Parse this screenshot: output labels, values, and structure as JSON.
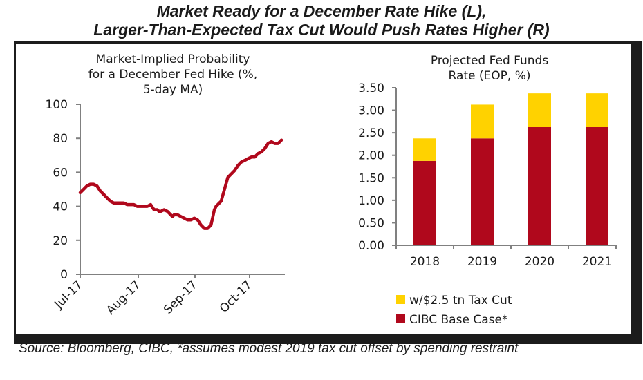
{
  "header": {
    "title_line1": "Market Ready for a December Rate Hike (L),",
    "title_line2": "Larger-Than-Expected Tax Cut Would Push Rates Higher (R)"
  },
  "footer": {
    "source": "Source: Bloomberg, CIBC, *assumes modest 2019 tax cut offset by spending restraint"
  },
  "colors": {
    "line": "#b0081c",
    "base_case": "#b0081c",
    "tax_cut": "#ffd200",
    "axis": "#808080"
  },
  "chart_data": [
    {
      "type": "line",
      "title": [
        "Market-Implied Probability",
        "for a December Fed Hike (%,",
        "5-day MA)"
      ],
      "xlabel": "",
      "ylabel": "",
      "ylim": [
        0,
        100
      ],
      "yticks": [
        0,
        20,
        40,
        60,
        80,
        100
      ],
      "ytick_labels": [
        "0",
        "20",
        "40",
        "60",
        "80",
        "100"
      ],
      "xlim_days": [
        0,
        125
      ],
      "xticks_days": [
        0,
        31,
        62,
        92
      ],
      "xtick_labels": [
        "Jul-17",
        "Aug-17",
        "Sep-17",
        "Oct-17"
      ],
      "grid": false,
      "series": [
        {
          "name": "Market-Implied Probability",
          "x_days": [
            0,
            2,
            4,
            6,
            8,
            10,
            12,
            14,
            16,
            18,
            20,
            22,
            24,
            26,
            28,
            30,
            32,
            34,
            36,
            38,
            40,
            42,
            44,
            46,
            47,
            48,
            50,
            52,
            54,
            55,
            56,
            58,
            60,
            62,
            64,
            66,
            68,
            70,
            72,
            73,
            74,
            76,
            78,
            80,
            81,
            82,
            84,
            86,
            88,
            90,
            92,
            94,
            96,
            98,
            100,
            102,
            104,
            106,
            108,
            110,
            112,
            114,
            116,
            118,
            120
          ],
          "values": [
            48,
            50,
            52,
            53,
            53,
            52,
            49,
            47,
            45,
            43,
            42,
            42,
            42,
            42,
            41,
            41,
            41,
            40,
            40,
            40,
            40,
            41,
            38,
            38,
            37,
            37,
            38,
            37,
            35,
            34,
            35,
            35,
            34,
            33,
            32,
            32,
            33,
            32,
            29,
            28,
            27,
            27,
            29,
            38,
            40,
            41,
            43,
            50,
            57,
            59,
            61,
            64,
            66,
            67,
            68,
            69,
            69,
            71,
            72,
            74,
            77,
            78,
            77,
            77,
            79
          ]
        }
      ]
    },
    {
      "type": "bar",
      "stacked": true,
      "title": [
        "Projected Fed Funds",
        "Rate (EOP, %)"
      ],
      "categories": [
        "2018",
        "2019",
        "2020",
        "2021"
      ],
      "xlabel": "",
      "ylabel": "",
      "ylim": [
        0,
        3.5
      ],
      "yticks": [
        0,
        0.5,
        1.0,
        1.5,
        2.0,
        2.5,
        3.0,
        3.5
      ],
      "ytick_labels": [
        "0.00",
        "0.50",
        "1.00",
        "1.50",
        "2.00",
        "2.50",
        "3.00",
        "3.50"
      ],
      "grid": false,
      "legend_position": "bottom",
      "series": [
        {
          "name": "CIBC Base Case*",
          "values": [
            1.875,
            2.375,
            2.625,
            2.625
          ]
        },
        {
          "name": "w/$2.5 tn Tax Cut",
          "values": [
            0.5,
            0.75,
            0.75,
            0.75
          ]
        }
      ],
      "legend": [
        "w/$2.5 tn Tax Cut",
        "CIBC Base Case*"
      ]
    }
  ]
}
